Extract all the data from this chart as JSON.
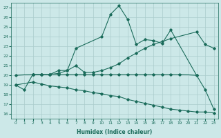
{
  "xlabel": "Humidex (Indice chaleur)",
  "bg_color": "#cce8e8",
  "grid_color": "#aacccc",
  "line_color": "#1a6b5a",
  "xlim": [
    -0.5,
    23.5
  ],
  "ylim": [
    15.5,
    27.5
  ],
  "yticks": [
    16,
    17,
    18,
    19,
    20,
    21,
    22,
    23,
    24,
    25,
    26,
    27
  ],
  "xticks": [
    0,
    1,
    2,
    3,
    4,
    5,
    6,
    7,
    8,
    9,
    10,
    11,
    12,
    13,
    14,
    15,
    16,
    17,
    18,
    19,
    20,
    21,
    22,
    23
  ],
  "lines": [
    {
      "x": [
        0,
        1,
        2,
        3,
        4,
        5,
        6,
        7,
        10,
        11,
        12,
        13,
        14,
        15,
        16,
        17,
        18,
        21
      ],
      "y": [
        19.0,
        18.5,
        20.1,
        20.1,
        20.1,
        20.5,
        20.5,
        22.8,
        24.0,
        26.3,
        27.2,
        25.8,
        23.2,
        23.7,
        23.6,
        23.3,
        24.7,
        20.0
      ]
    },
    {
      "x": [
        2,
        3,
        4,
        5,
        6,
        7,
        8,
        9,
        10,
        11,
        12,
        13,
        14,
        15,
        16,
        17,
        18,
        21,
        22,
        23
      ],
      "y": [
        20.1,
        20.1,
        20.1,
        20.2,
        20.5,
        21.0,
        20.3,
        20.3,
        20.5,
        20.8,
        21.2,
        21.8,
        22.3,
        22.8,
        23.2,
        23.5,
        23.8,
        24.5,
        23.2,
        22.8
      ]
    },
    {
      "x": [
        0,
        2,
        3,
        4,
        5,
        6,
        7,
        8,
        9,
        10,
        11,
        12,
        13,
        14,
        15,
        16,
        17,
        18,
        19,
        21,
        22,
        23
      ],
      "y": [
        20.0,
        20.1,
        20.1,
        20.1,
        20.1,
        20.1,
        20.1,
        20.1,
        20.1,
        20.1,
        20.1,
        20.1,
        20.1,
        20.1,
        20.1,
        20.1,
        20.1,
        20.1,
        20.1,
        20.0,
        18.5,
        16.5
      ]
    },
    {
      "x": [
        0,
        2,
        3,
        4,
        5,
        6,
        7,
        8,
        9,
        10,
        11,
        12,
        13,
        14,
        15,
        16,
        17,
        18,
        19,
        20,
        21,
        22,
        23
      ],
      "y": [
        19.0,
        19.3,
        19.1,
        18.9,
        18.8,
        18.7,
        18.5,
        18.4,
        18.2,
        18.1,
        17.9,
        17.8,
        17.5,
        17.3,
        17.1,
        16.9,
        16.7,
        16.5,
        16.4,
        16.3,
        16.2,
        16.2,
        16.1
      ]
    }
  ]
}
